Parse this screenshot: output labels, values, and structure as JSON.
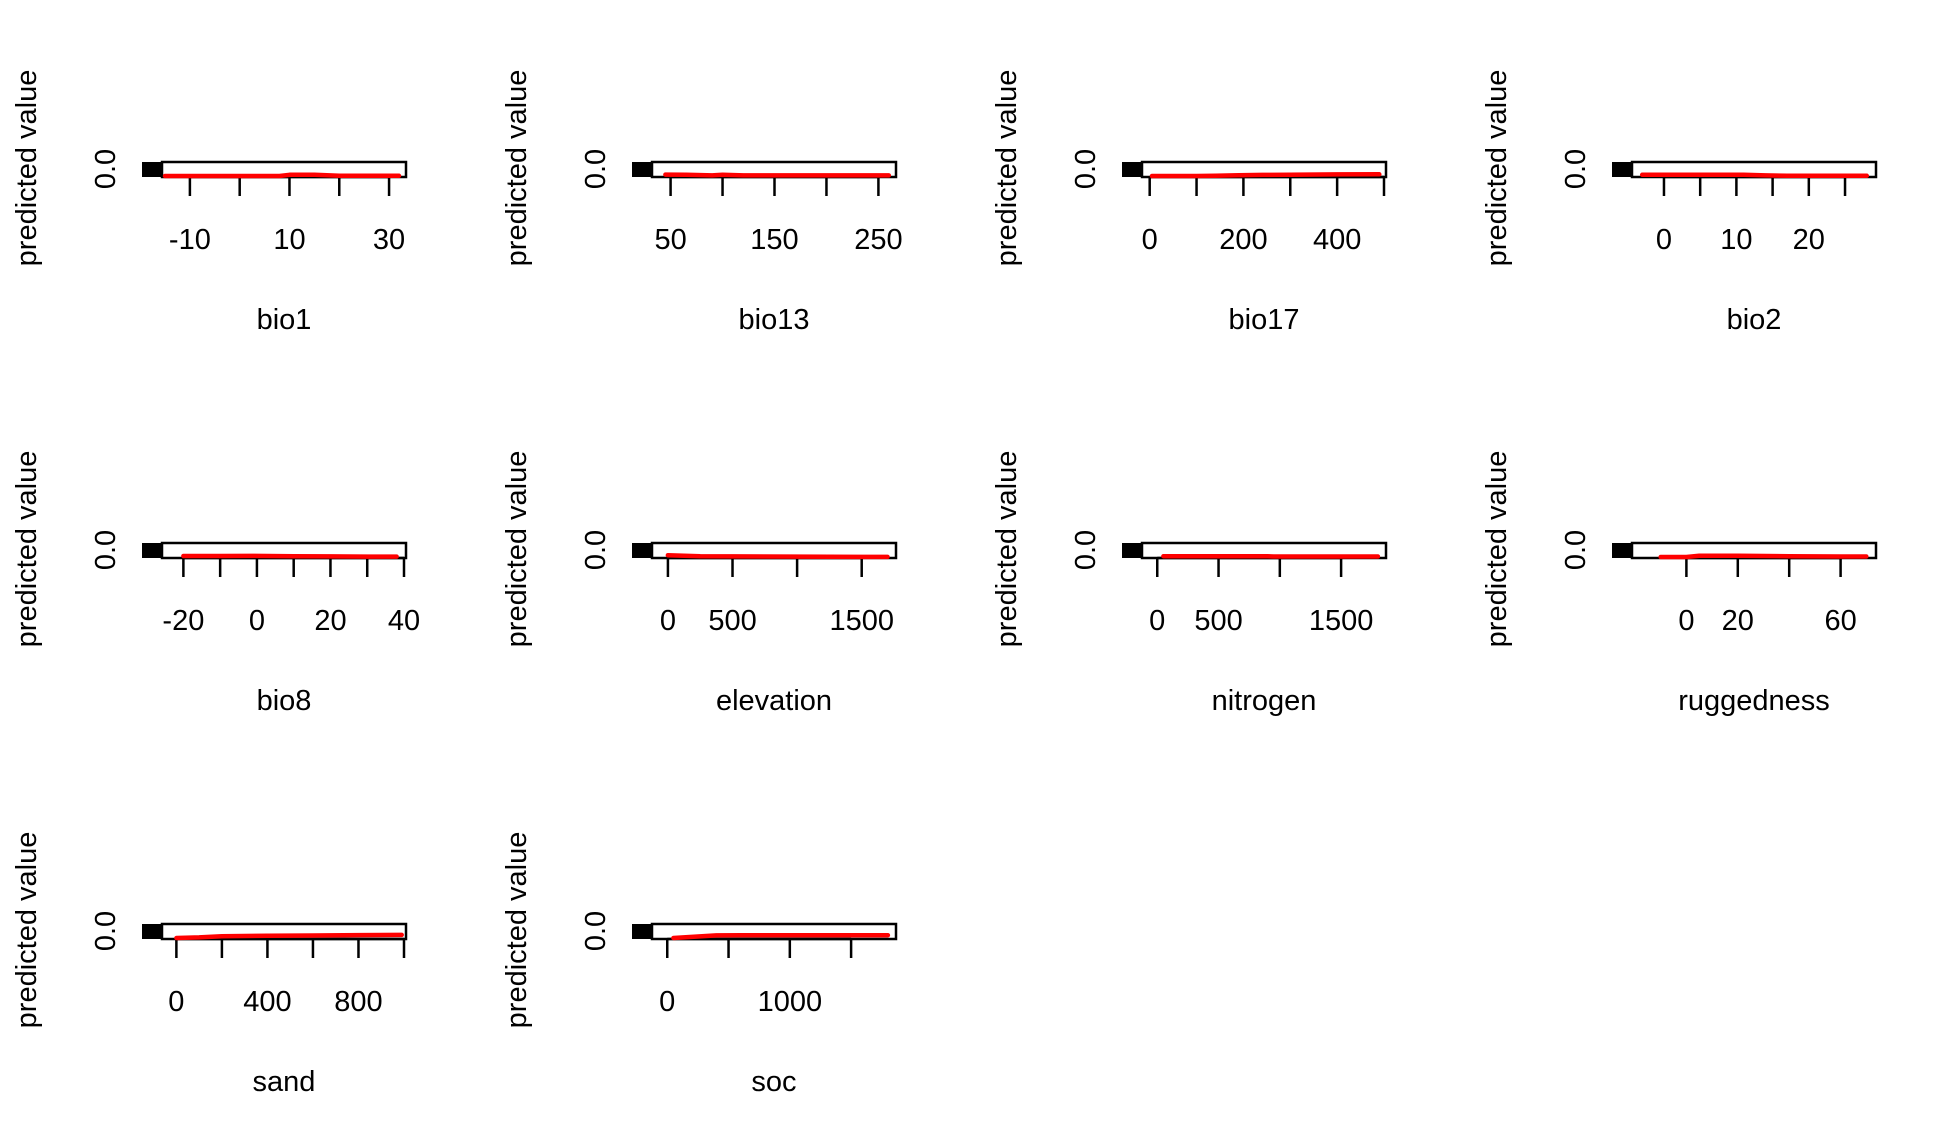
{
  "colors": {
    "line": "#ff0000",
    "frame": "#000000",
    "background": "#ffffff"
  },
  "chart_data": [
    {
      "type": "line",
      "title": "",
      "xlabel": "bio1",
      "ylabel": "predicted value",
      "ytick_labels": [
        "0.0"
      ],
      "xlim": [
        -15,
        33
      ],
      "xticks": [
        -10,
        0,
        10,
        20,
        30
      ],
      "xtick_labels": [
        "-10",
        "10",
        "30"
      ],
      "x": [
        -15,
        -5,
        5,
        8,
        10,
        15,
        20,
        25,
        32
      ],
      "y": [
        0.0,
        0.0,
        0.0,
        0.0,
        0.1,
        0.1,
        0.02,
        0.02,
        0.02
      ]
    },
    {
      "type": "line",
      "title": "",
      "xlabel": "bio13",
      "ylabel": "predicted value",
      "ytick_labels": [
        "0.0"
      ],
      "xlim": [
        35,
        265
      ],
      "xticks": [
        50,
        100,
        150,
        200,
        250
      ],
      "xtick_labels": [
        "50",
        "150",
        "250"
      ],
      "x": [
        45,
        65,
        90,
        100,
        120,
        150,
        200,
        260
      ],
      "y": [
        0.12,
        0.1,
        0.05,
        0.1,
        0.05,
        0.05,
        0.05,
        0.05
      ]
    },
    {
      "type": "line",
      "title": "",
      "xlabel": "bio17",
      "ylabel": "predicted value",
      "ytick_labels": [
        "0.0"
      ],
      "xlim": [
        -10,
        500
      ],
      "xticks": [
        0,
        100,
        200,
        300,
        400,
        500
      ],
      "xtick_labels": [
        "0",
        "200",
        "400"
      ],
      "x": [
        5,
        100,
        140,
        190,
        240,
        300,
        400,
        490
      ],
      "y": [
        0.0,
        0.0,
        0.02,
        0.06,
        0.09,
        0.11,
        0.13,
        0.14
      ]
    },
    {
      "type": "line",
      "title": "",
      "xlabel": "bio2",
      "ylabel": "predicted value",
      "ytick_labels": [
        "0.0"
      ],
      "xlim": [
        -4,
        29
      ],
      "xticks": [
        0,
        5,
        10,
        15,
        20,
        25
      ],
      "xtick_labels": [
        "0",
        "10",
        "20"
      ],
      "x": [
        -3,
        5,
        11,
        14,
        17,
        20,
        28
      ],
      "y": [
        0.1,
        0.1,
        0.1,
        0.05,
        0.02,
        0.02,
        0.02
      ]
    },
    {
      "type": "line",
      "title": "",
      "xlabel": "bio8",
      "ylabel": "predicted value",
      "ytick_labels": [
        "0.0"
      ],
      "xlim": [
        -25,
        40
      ],
      "xticks": [
        -20,
        -10,
        0,
        10,
        20,
        30,
        40
      ],
      "xtick_labels": [
        "-20",
        "0",
        "20",
        "40"
      ],
      "x": [
        -20,
        -10,
        -1,
        10,
        20,
        30,
        38
      ],
      "y": [
        0.08,
        0.08,
        0.09,
        0.07,
        0.05,
        0.03,
        0.03
      ]
    },
    {
      "type": "line",
      "title": "",
      "xlabel": "elevation",
      "ylabel": "predicted value",
      "ytick_labels": [
        "0.0"
      ],
      "xlim": [
        -100,
        1750
      ],
      "xticks": [
        0,
        500,
        1000,
        1500
      ],
      "xtick_labels": [
        "0",
        "500",
        "1500"
      ],
      "x": [
        0,
        250,
        500,
        1000,
        1500,
        1700
      ],
      "y": [
        0.15,
        0.07,
        0.05,
        0.03,
        0.01,
        0.01
      ]
    },
    {
      "type": "line",
      "title": "",
      "xlabel": "nitrogen",
      "ylabel": "predicted value",
      "ytick_labels": [
        "0.0"
      ],
      "xlim": [
        -100,
        1850
      ],
      "xticks": [
        0,
        500,
        1000,
        1500
      ],
      "xtick_labels": [
        "0",
        "500",
        "1500"
      ],
      "x": [
        50,
        500,
        900,
        950,
        1500,
        1800
      ],
      "y": [
        0.07,
        0.07,
        0.07,
        0.04,
        0.04,
        0.04
      ]
    },
    {
      "type": "line",
      "title": "",
      "xlabel": "ruggedness",
      "ylabel": "predicted value",
      "ytick_labels": [
        "0.0"
      ],
      "xlim": [
        -20,
        73
      ],
      "xticks": [
        0,
        20,
        40,
        60
      ],
      "xtick_labels": [
        "0",
        "20",
        "60"
      ],
      "x": [
        -10,
        0,
        5,
        10,
        20,
        40,
        60,
        70
      ],
      "y": [
        0.0,
        0.0,
        0.1,
        0.11,
        0.1,
        0.07,
        0.04,
        0.04
      ]
    },
    {
      "type": "line",
      "title": "",
      "xlabel": "sand",
      "ylabel": "predicted value",
      "ytick_labels": [
        "0.0"
      ],
      "xlim": [
        -50,
        1000
      ],
      "xticks": [
        0,
        200,
        400,
        600,
        800,
        1000
      ],
      "xtick_labels": [
        "0",
        "400",
        "800"
      ],
      "x": [
        0,
        100,
        200,
        400,
        600,
        800,
        990
      ],
      "y": [
        0.0,
        0.05,
        0.15,
        0.18,
        0.21,
        0.24,
        0.26
      ]
    },
    {
      "type": "line",
      "title": "",
      "xlabel": "soc",
      "ylabel": "predicted value",
      "ytick_labels": [
        "0.0"
      ],
      "xlim": [
        -100,
        1850
      ],
      "xticks": [
        0,
        500,
        1000,
        1500
      ],
      "xtick_labels": [
        "0",
        "1000"
      ],
      "x": [
        50,
        400,
        600,
        1000,
        1500,
        1800
      ],
      "y": [
        0.0,
        0.22,
        0.23,
        0.23,
        0.23,
        0.23
      ]
    }
  ]
}
